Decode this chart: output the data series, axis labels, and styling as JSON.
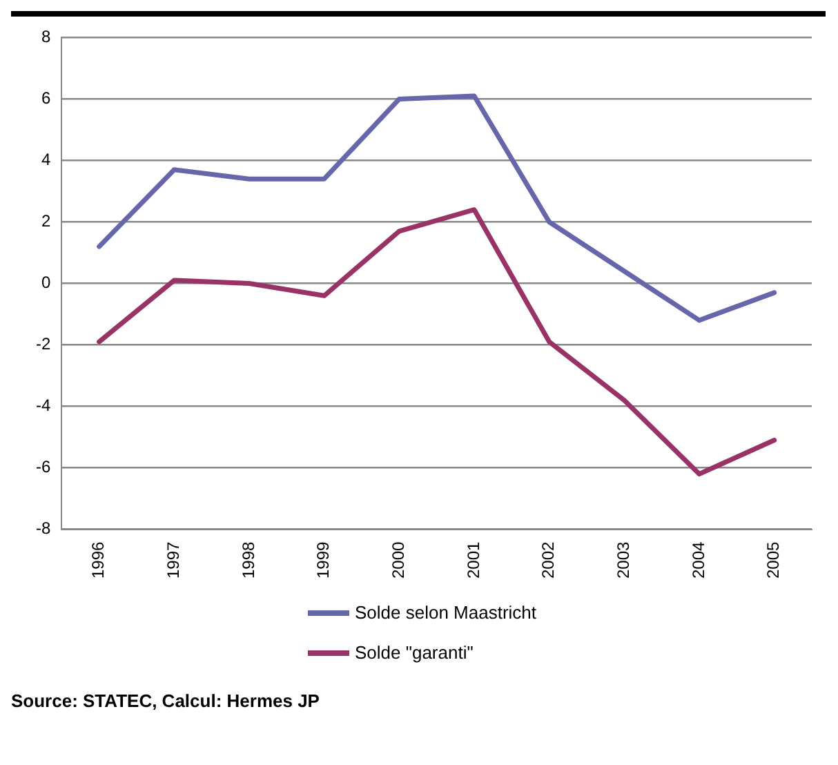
{
  "chart_data": {
    "type": "line",
    "categories": [
      "1996",
      "1997",
      "1998",
      "1999",
      "2000",
      "2001",
      "2002",
      "2003",
      "2004",
      "2005"
    ],
    "series": [
      {
        "name": "Solde selon Maastricht",
        "color": "#6666aa",
        "values": [
          1.2,
          3.7,
          3.4,
          3.4,
          6.0,
          6.1,
          2.0,
          0.4,
          -1.2,
          -0.3
        ]
      },
      {
        "name": "Solde \"garanti\"",
        "color": "#993366",
        "values": [
          -1.9,
          0.1,
          0.0,
          -0.4,
          1.7,
          2.4,
          -1.9,
          -3.8,
          -6.2,
          -5.1
        ]
      }
    ],
    "ylim": [
      -8,
      8
    ],
    "yticks": [
      -8,
      -6,
      -4,
      -2,
      0,
      2,
      4,
      6,
      8
    ],
    "grid": "y",
    "legend": "bottom",
    "marker": "none",
    "line_style": "solid",
    "annotations": [
      "Source: STATEC, Calcul: Hermes JP"
    ]
  }
}
